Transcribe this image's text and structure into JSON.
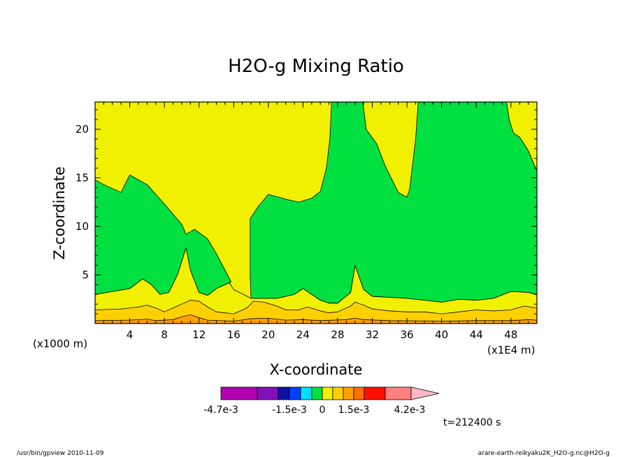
{
  "chart_data": {
    "type": "contour",
    "title": "H2O-g Mixing Ratio",
    "xlabel": "X-coordinate",
    "ylabel": "Z-coordinate",
    "x_unit_note": "(x1E4 m)",
    "y_unit_note": "(x1000 m)",
    "xlim": [
      0,
      51
    ],
    "ylim": [
      0,
      22.8
    ],
    "x_ticks": [
      4,
      8,
      12,
      16,
      20,
      24,
      28,
      32,
      36,
      40,
      44,
      48
    ],
    "y_ticks": [
      5,
      10,
      15,
      20
    ],
    "colorbar": {
      "labels": [
        "-4.7e-3",
        "-1.5e-3",
        "0",
        "1.5e-3",
        "4.2e-3"
      ],
      "colors": [
        "#b000b0",
        "#8010b8",
        "#1010a8",
        "#0040ff",
        "#00e0ff",
        "#00e040",
        "#f0f000",
        "#ffd000",
        "#ffa000",
        "#ff7000",
        "#ff1000",
        "#ff8080",
        "#ffb8c8"
      ]
    },
    "regions": [
      {
        "name": "lower-yellow-band",
        "color": "#f0f000",
        "upper_boundary": [
          [
            0,
            3.0
          ],
          [
            2,
            3.3
          ],
          [
            4,
            3.6
          ],
          [
            5.5,
            4.6
          ],
          [
            6.5,
            4.0
          ],
          [
            7.5,
            3.0
          ],
          [
            8.5,
            3.2
          ],
          [
            9.5,
            5.0
          ],
          [
            10.5,
            7.8
          ],
          [
            11,
            5.5
          ],
          [
            12,
            3.2
          ],
          [
            13,
            2.9
          ],
          [
            14,
            3.6
          ],
          [
            15.5,
            4.2
          ],
          [
            16,
            3.5
          ],
          [
            18,
            2.6
          ],
          [
            21,
            2.6
          ],
          [
            22,
            2.8
          ],
          [
            23,
            3.0
          ],
          [
            24,
            3.6
          ],
          [
            25,
            3.0
          ],
          [
            26,
            2.4
          ],
          [
            27,
            2.1
          ],
          [
            28,
            2.1
          ],
          [
            29.5,
            3.2
          ],
          [
            30,
            6.0
          ],
          [
            31,
            3.5
          ],
          [
            32,
            2.8
          ],
          [
            34,
            2.7
          ],
          [
            36,
            2.6
          ],
          [
            38,
            2.4
          ],
          [
            40,
            2.2
          ],
          [
            42,
            2.5
          ],
          [
            44,
            2.4
          ],
          [
            46,
            2.6
          ],
          [
            48,
            3.3
          ],
          [
            50,
            3.2
          ],
          [
            51,
            3.0
          ]
        ]
      },
      {
        "name": "green-left",
        "color": "#00e040",
        "outline": [
          [
            0,
            14.8
          ],
          [
            1,
            14.3
          ],
          [
            3,
            13.5
          ],
          [
            4,
            15.3
          ],
          [
            6,
            14.3
          ],
          [
            8,
            12.3
          ],
          [
            10,
            10.2
          ],
          [
            10.5,
            9.2
          ],
          [
            11.5,
            9.7
          ],
          [
            13,
            8.7
          ],
          [
            14,
            7.2
          ],
          [
            15,
            5.5
          ],
          [
            15.7,
            4.3
          ],
          [
            15.5,
            4.2
          ],
          [
            14,
            3.6
          ],
          [
            13,
            2.9
          ],
          [
            12,
            3.2
          ],
          [
            11,
            5.5
          ],
          [
            10.5,
            7.8
          ],
          [
            9.5,
            5.0
          ],
          [
            8.5,
            3.2
          ],
          [
            7.5,
            3.0
          ],
          [
            6.5,
            4.0
          ],
          [
            5.5,
            4.6
          ],
          [
            4,
            3.6
          ],
          [
            2,
            3.3
          ],
          [
            0,
            3.0
          ]
        ]
      },
      {
        "name": "green-right",
        "color": "#00e040",
        "outline": [
          [
            17.9,
            10.8
          ],
          [
            18.8,
            12.0
          ],
          [
            20,
            13.3
          ],
          [
            22,
            12.8
          ],
          [
            23.5,
            12.5
          ],
          [
            25,
            12.9
          ],
          [
            26,
            13.6
          ],
          [
            26.7,
            16.0
          ],
          [
            27.1,
            19.0
          ],
          [
            27.3,
            22.8
          ],
          [
            30.9,
            22.8
          ],
          [
            31.3,
            20.0
          ],
          [
            32.5,
            18.5
          ],
          [
            33.5,
            16.2
          ],
          [
            35,
            13.5
          ],
          [
            36,
            13.0
          ],
          [
            36.3,
            13.8
          ],
          [
            36.6,
            16.0
          ],
          [
            37,
            19.0
          ],
          [
            37.3,
            22.8
          ],
          [
            47.5,
            22.8
          ],
          [
            47.8,
            21.0
          ],
          [
            48.3,
            19.6
          ],
          [
            49,
            19.2
          ],
          [
            50,
            17.8
          ],
          [
            51,
            15.7
          ],
          [
            51,
            3.0
          ],
          [
            50,
            3.2
          ],
          [
            48,
            3.3
          ],
          [
            46,
            2.6
          ],
          [
            44,
            2.4
          ],
          [
            42,
            2.5
          ],
          [
            40,
            2.2
          ],
          [
            38,
            2.4
          ],
          [
            36,
            2.6
          ],
          [
            34,
            2.7
          ],
          [
            32,
            2.8
          ],
          [
            31,
            3.5
          ],
          [
            30,
            6.0
          ],
          [
            29.5,
            3.2
          ],
          [
            28,
            2.1
          ],
          [
            27,
            2.1
          ],
          [
            26,
            2.4
          ],
          [
            25,
            3.0
          ],
          [
            24,
            3.6
          ],
          [
            23,
            3.0
          ],
          [
            22,
            2.8
          ],
          [
            21,
            2.6
          ],
          [
            18,
            2.6
          ],
          [
            17.9,
            5.0
          ]
        ]
      },
      {
        "name": "orange-band",
        "color": "#ffd000",
        "upper_boundary": [
          [
            0,
            1.4
          ],
          [
            3,
            1.5
          ],
          [
            5,
            1.7
          ],
          [
            6,
            1.9
          ],
          [
            7,
            1.6
          ],
          [
            8,
            1.2
          ],
          [
            9,
            1.6
          ],
          [
            10,
            2.0
          ],
          [
            11,
            2.4
          ],
          [
            12,
            2.3
          ],
          [
            13,
            1.7
          ],
          [
            14,
            1.2
          ],
          [
            16,
            1.0
          ],
          [
            17.5,
            1.6
          ],
          [
            18.3,
            2.3
          ],
          [
            19.5,
            2.2
          ],
          [
            21,
            1.8
          ],
          [
            22,
            1.4
          ],
          [
            23.5,
            1.4
          ],
          [
            24.5,
            1.7
          ],
          [
            26,
            1.3
          ],
          [
            27,
            1.1
          ],
          [
            28,
            1.2
          ],
          [
            29.5,
            1.8
          ],
          [
            30,
            2.2
          ],
          [
            31,
            1.9
          ],
          [
            32,
            1.5
          ],
          [
            34,
            1.3
          ],
          [
            36,
            1.2
          ],
          [
            38,
            1.2
          ],
          [
            40,
            1.0
          ],
          [
            42,
            1.2
          ],
          [
            44,
            1.4
          ],
          [
            46,
            1.3
          ],
          [
            48,
            1.4
          ],
          [
            49.5,
            1.8
          ],
          [
            51,
            1.6
          ]
        ]
      },
      {
        "name": "dark-orange-band",
        "color": "#ffa000",
        "upper_boundary": [
          [
            0,
            0.3
          ],
          [
            4,
            0.35
          ],
          [
            6,
            0.45
          ],
          [
            7,
            0.3
          ],
          [
            9,
            0.4
          ],
          [
            10,
            0.7
          ],
          [
            11,
            0.9
          ],
          [
            12,
            0.6
          ],
          [
            13,
            0.35
          ],
          [
            16,
            0.25
          ],
          [
            18,
            0.5
          ],
          [
            20,
            0.55
          ],
          [
            22,
            0.35
          ],
          [
            24,
            0.4
          ],
          [
            26,
            0.3
          ],
          [
            29,
            0.4
          ],
          [
            30,
            0.55
          ],
          [
            31,
            0.4
          ],
          [
            34,
            0.3
          ],
          [
            40,
            0.25
          ],
          [
            44,
            0.3
          ],
          [
            48,
            0.3
          ],
          [
            50,
            0.4
          ],
          [
            51,
            0.35
          ]
        ]
      }
    ]
  },
  "time_label": "t=212400 s",
  "footer": {
    "left": "/usr/bin/gpview  2010-11-09",
    "right": "arare-earth-reikyaku2K_H2O-g.nc@H2O-g"
  }
}
